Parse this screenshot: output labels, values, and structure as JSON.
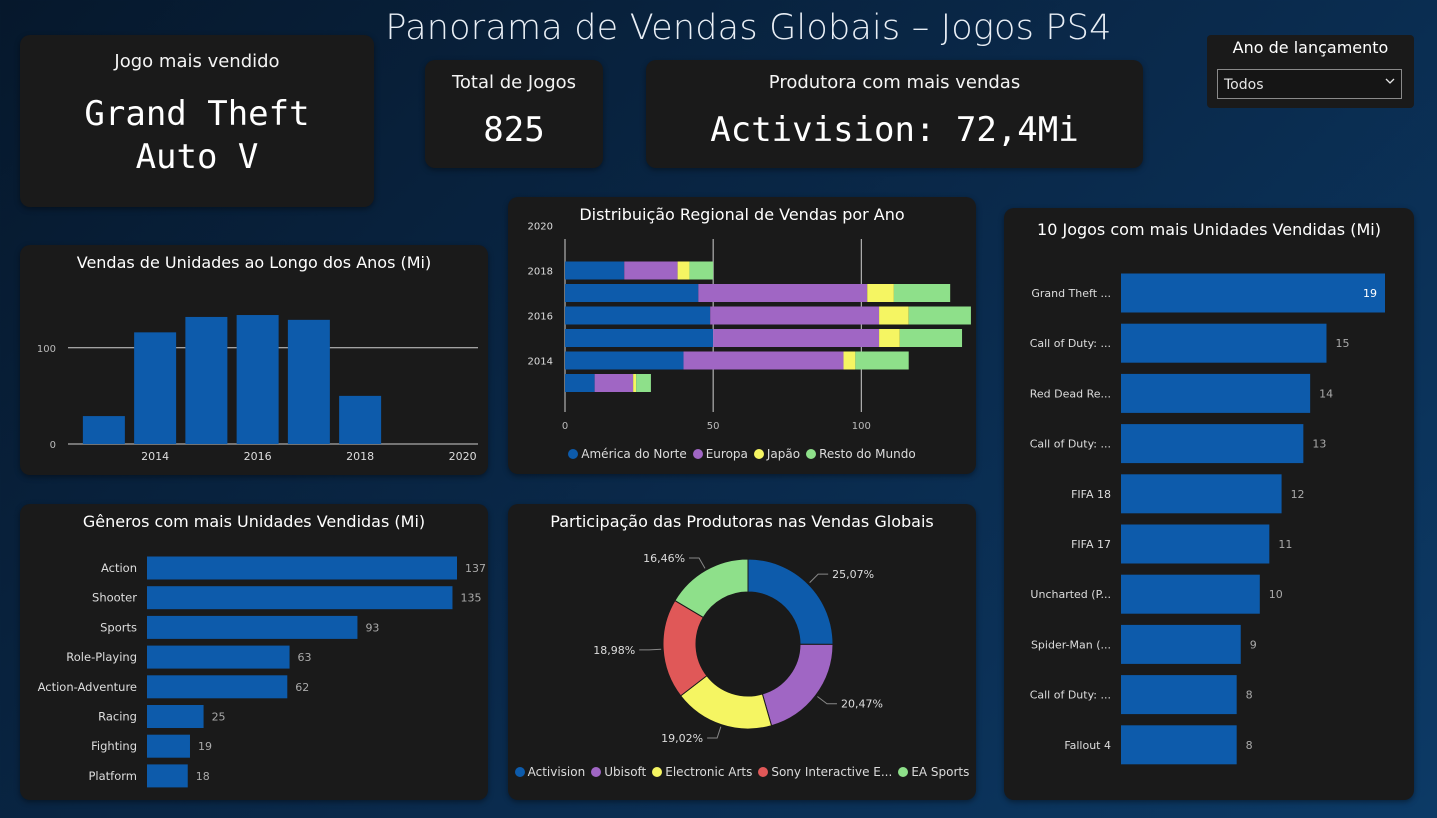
{
  "header": {
    "title": "Panorama de Vendas Globais – Jogos PS4"
  },
  "kpis": {
    "top_game": {
      "label": "Jogo mais vendido",
      "value": "Grand Theft Auto V"
    },
    "total_games": {
      "label": "Total de Jogos",
      "value": "825"
    },
    "top_publisher": {
      "label": "Produtora com mais vendas",
      "value": "Activision: 72,4Mi"
    }
  },
  "slicer": {
    "title": "Ano de lançamento",
    "value": "Todos",
    "icon": "chevron-down-icon"
  },
  "colors": {
    "bar": "#0d5bab",
    "america": "#0d5bab",
    "europa": "#a066c4",
    "japao": "#f5f562",
    "resto": "#8ee08a",
    "sony": "#e05858",
    "gridline": "#cfcfcf"
  },
  "chart_data": [
    {
      "id": "sales_by_year",
      "type": "bar",
      "title": "Vendas de Unidades ao Longo dos Anos (Mi)",
      "x": [
        2013,
        2014,
        2015,
        2016,
        2017,
        2018
      ],
      "values": [
        29,
        116,
        132,
        134,
        129,
        50
      ],
      "xticks": [
        "2014",
        "2016",
        "2018",
        "2020"
      ],
      "yticks": [
        "0",
        "100"
      ],
      "xlim": [
        2012.3,
        2020.3
      ],
      "ylim": [
        0,
        160
      ]
    },
    {
      "id": "regional_by_year",
      "type": "bar",
      "orientation": "horizontal-stacked",
      "title": "Distribuição Regional de Vendas por Ano",
      "categories": [
        2013,
        2014,
        2015,
        2016,
        2017,
        2018
      ],
      "yticks": [
        "2014",
        "2016",
        "2018",
        "2020"
      ],
      "xticks": [
        "0",
        "50",
        "100"
      ],
      "xlim": [
        0,
        135
      ],
      "series": [
        {
          "name": "América do Norte",
          "values": [
            10,
            40,
            50,
            49,
            45,
            20
          ]
        },
        {
          "name": "Europa",
          "values": [
            13,
            54,
            56,
            57,
            57,
            18
          ]
        },
        {
          "name": "Japão",
          "values": [
            1,
            4,
            7,
            10,
            9,
            4
          ]
        },
        {
          "name": "Resto do Mundo",
          "values": [
            5,
            18,
            21,
            21,
            19,
            8
          ]
        }
      ]
    },
    {
      "id": "genres",
      "type": "bar",
      "orientation": "horizontal",
      "title": "Gêneros com mais Unidades Vendidas (Mi)",
      "categories": [
        "Action",
        "Shooter",
        "Sports",
        "Role-Playing",
        "Action-Adventure",
        "Racing",
        "Fighting",
        "Platform"
      ],
      "values": [
        137,
        135,
        93,
        63,
        62,
        25,
        19,
        18
      ],
      "labels": [
        "137",
        "135",
        "93",
        "63",
        "62",
        "25",
        "19",
        "18"
      ]
    },
    {
      "id": "publishers_share",
      "type": "pie",
      "title": "Participação das Produtoras nas Vendas Globais",
      "categories": [
        "Activision",
        "Ubisoft",
        "Electronic Arts",
        "Sony Interactive E...",
        "EA Sports"
      ],
      "values": [
        25.07,
        20.47,
        19.02,
        18.98,
        16.46
      ],
      "labels": [
        "25,07%",
        "20,47%",
        "19,02%",
        "18,98%",
        "16,46%"
      ]
    },
    {
      "id": "top_games",
      "type": "bar",
      "orientation": "horizontal",
      "title": "10 Jogos com mais Unidades Vendidas (Mi)",
      "categories": [
        "Grand Theft ...",
        "Call of Duty: ...",
        "Red Dead Re...",
        "Call of Duty: ...",
        "FIFA 18",
        "FIFA 17",
        "Uncharted (P...",
        "Spider-Man (...",
        "Call of Duty: ...",
        "Fallout 4"
      ],
      "values": [
        19.4,
        15.1,
        13.9,
        13.4,
        11.8,
        10.9,
        10.2,
        8.8,
        8.5,
        8.5
      ],
      "labels": [
        "19",
        "15",
        "14",
        "13",
        "12",
        "11",
        "10",
        "9",
        "8",
        "8"
      ]
    }
  ]
}
